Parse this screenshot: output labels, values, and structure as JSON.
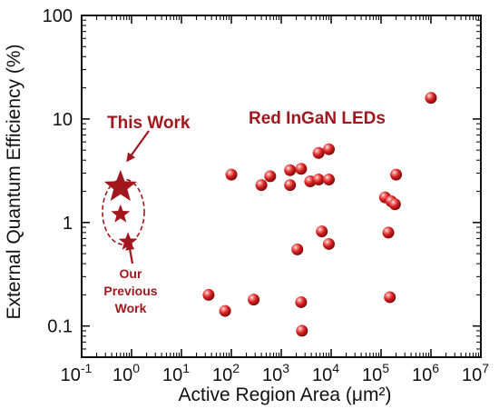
{
  "chart_data": {
    "type": "scatter",
    "title": "",
    "xlabel": "Active Region Area (μm²)",
    "ylabel": "External Quantum Efficiency (%)",
    "x_scale": "log",
    "y_scale": "log",
    "xlim": [
      0.1,
      10000000
    ],
    "ylim": [
      0.05,
      100
    ],
    "x_ticks": [
      {
        "value": 0.1,
        "base": "10",
        "exp": "-1"
      },
      {
        "value": 1,
        "base": "10",
        "exp": "0"
      },
      {
        "value": 10,
        "base": "10",
        "exp": "1"
      },
      {
        "value": 100,
        "base": "10",
        "exp": "2"
      },
      {
        "value": 1000,
        "base": "10",
        "exp": "3"
      },
      {
        "value": 10000,
        "base": "10",
        "exp": "4"
      },
      {
        "value": 100000,
        "base": "10",
        "exp": "5"
      },
      {
        "value": 1000000,
        "base": "10",
        "exp": "6"
      },
      {
        "value": 10000000,
        "base": "10",
        "exp": "7"
      }
    ],
    "y_ticks": [
      {
        "value": 0.1,
        "label": "0.1"
      },
      {
        "value": 1,
        "label": "1"
      },
      {
        "value": 10,
        "label": "10"
      },
      {
        "value": 100,
        "label": "100"
      }
    ],
    "grid": false,
    "series": [
      {
        "name": "Red InGaN LEDs",
        "marker": "sphere",
        "color": "#d42020",
        "points": [
          [
            35,
            0.2
          ],
          [
            75,
            0.14
          ],
          [
            100,
            2.9
          ],
          [
            280,
            0.18
          ],
          [
            400,
            2.3
          ],
          [
            600,
            2.8
          ],
          [
            1500,
            3.2
          ],
          [
            1500,
            2.3
          ],
          [
            2100,
            0.55
          ],
          [
            2500,
            3.3
          ],
          [
            2500,
            0.17
          ],
          [
            2600,
            0.09
          ],
          [
            3800,
            2.5
          ],
          [
            5600,
            2.6
          ],
          [
            5600,
            4.7
          ],
          [
            6500,
            0.82
          ],
          [
            9000,
            2.6
          ],
          [
            9000,
            5.1
          ],
          [
            9000,
            0.62
          ],
          [
            120000,
            1.75
          ],
          [
            140000,
            0.8
          ],
          [
            150000,
            0.19
          ],
          [
            160000,
            1.6
          ],
          [
            190000,
            1.5
          ],
          [
            200000,
            2.9
          ],
          [
            1000000,
            16
          ]
        ]
      },
      {
        "name": "This Work",
        "marker": "star",
        "color": "#a0181e",
        "points": [
          [
            0.6,
            2.2
          ]
        ]
      },
      {
        "name": "Our Previous Work",
        "marker": "star",
        "color": "#a0181e",
        "points": [
          [
            0.6,
            1.2
          ],
          [
            0.85,
            0.65
          ]
        ]
      }
    ],
    "annotations": {
      "this_work": "This Work",
      "red_ingan": "Red InGaN LEDs",
      "previous_line1": "Our",
      "previous_line2": "Previous",
      "previous_line3": "Work"
    },
    "colors": {
      "annotation": "#a0181e",
      "sphere": "#d42020"
    }
  }
}
